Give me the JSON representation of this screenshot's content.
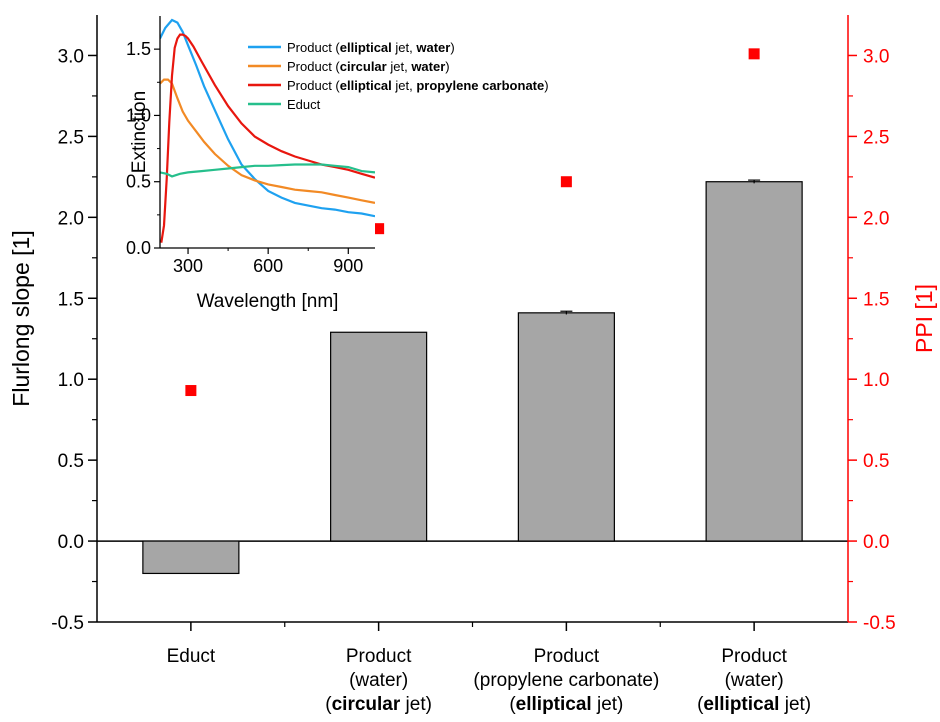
{
  "chart_data": [
    {
      "type": "bar",
      "ylabel": "Flurlong slope [1]",
      "y2label": "PPI [1]",
      "ylim": [
        -0.5,
        3.25
      ],
      "y2lim": [
        -0.5,
        3.25
      ],
      "yticks": [
        "-0.5",
        "0.0",
        "0.5",
        "1.0",
        "1.5",
        "2.0",
        "2.5",
        "3.0"
      ],
      "y2ticks": [
        "-0.5",
        "0.0",
        "0.5",
        "1.0",
        "1.5",
        "2.0",
        "2.5",
        "3.0"
      ],
      "categories": [
        [
          {
            "t": "Educt",
            "b": false
          }
        ],
        [
          {
            "t": "Product",
            "b": false
          }
        ],
        [
          {
            "t": "Product",
            "b": false
          }
        ],
        [
          {
            "t": "Product",
            "b": false
          }
        ]
      ],
      "category_lines": [
        [
          [
            {
              "t": "Educt",
              "b": false
            }
          ]
        ],
        [
          [
            {
              "t": "Product",
              "b": false
            }
          ],
          [
            {
              "t": "(water)",
              "b": false
            }
          ],
          [
            {
              "t": "(",
              "b": false
            },
            {
              "t": "circular",
              "b": true
            },
            {
              "t": " jet)",
              "b": false
            }
          ]
        ],
        [
          [
            {
              "t": "Product",
              "b": false
            }
          ],
          [
            {
              "t": "(propylene carbonate)",
              "b": false
            }
          ],
          [
            {
              "t": "(",
              "b": false
            },
            {
              "t": "elliptical",
              "b": true
            },
            {
              "t": " jet)",
              "b": false
            }
          ]
        ],
        [
          [
            {
              "t": "Product",
              "b": false
            }
          ],
          [
            {
              "t": "(water)",
              "b": false
            }
          ],
          [
            {
              "t": "(",
              "b": false
            },
            {
              "t": "elliptical",
              "b": true
            },
            {
              "t": " jet)",
              "b": false
            }
          ]
        ]
      ],
      "series": [
        {
          "kind": "bar",
          "axis": "left",
          "values": [
            -0.2,
            1.29,
            1.41,
            2.22
          ],
          "errors": [
            0,
            0,
            0.01,
            0.01
          ],
          "color": "#a6a6a6"
        },
        {
          "kind": "scatter",
          "axis": "right",
          "values": [
            0.93,
            1.93,
            2.22,
            3.01
          ],
          "color": "#ff0000"
        }
      ],
      "axis_colors": {
        "left": "#000000",
        "right": "#ff0000"
      }
    },
    {
      "type": "line",
      "inset": true,
      "xlabel": "Wavelength [nm]",
      "ylabel": "Extinction",
      "xlim": [
        195,
        1000
      ],
      "ylim": [
        0,
        1.75
      ],
      "xticks": [
        300,
        600,
        900
      ],
      "yticks": [
        0,
        0.5,
        1.0,
        1.5
      ],
      "ytick_labels": [
        "0.0",
        "0.5",
        "1.0",
        "1.5"
      ],
      "legend_position": "top-right",
      "series": [
        {
          "name": [
            {
              "t": "Product (",
              "b": false
            },
            {
              "t": "elliptical",
              "b": true
            },
            {
              "t": " jet, ",
              "b": false
            },
            {
              "t": "water",
              "b": true
            },
            {
              "t": ")",
              "b": false
            }
          ],
          "color": "#1ea1f0",
          "x": [
            195,
            215,
            240,
            260,
            280,
            300,
            330,
            360,
            400,
            450,
            500,
            550,
            600,
            650,
            700,
            750,
            800,
            850,
            900,
            950,
            1000
          ],
          "y": [
            1.58,
            1.66,
            1.72,
            1.7,
            1.63,
            1.53,
            1.38,
            1.22,
            1.04,
            0.82,
            0.63,
            0.52,
            0.43,
            0.38,
            0.34,
            0.32,
            0.3,
            0.29,
            0.27,
            0.26,
            0.24
          ]
        },
        {
          "name": [
            {
              "t": "Product (",
              "b": false
            },
            {
              "t": "circular",
              "b": true
            },
            {
              "t": " jet, ",
              "b": false
            },
            {
              "t": "water",
              "b": true
            },
            {
              "t": ")",
              "b": false
            }
          ],
          "color": "#f28a25",
          "x": [
            195,
            210,
            225,
            240,
            260,
            280,
            300,
            330,
            360,
            400,
            450,
            500,
            550,
            600,
            650,
            700,
            750,
            800,
            850,
            900,
            950,
            1000
          ],
          "y": [
            1.24,
            1.27,
            1.27,
            1.24,
            1.13,
            1.03,
            0.96,
            0.88,
            0.8,
            0.71,
            0.62,
            0.55,
            0.51,
            0.48,
            0.46,
            0.44,
            0.43,
            0.42,
            0.4,
            0.38,
            0.36,
            0.34
          ]
        },
        {
          "name": [
            {
              "t": "Product (",
              "b": false
            },
            {
              "t": "elliptical",
              "b": true
            },
            {
              "t": " jet, ",
              "b": false
            },
            {
              "t": "propylene carbonate",
              "b": true
            },
            {
              "t": ")",
              "b": false
            }
          ],
          "color": "#e8170f",
          "x": [
            200,
            210,
            220,
            230,
            240,
            250,
            260,
            270,
            280,
            290,
            300,
            320,
            350,
            400,
            450,
            500,
            550,
            600,
            650,
            700,
            750,
            800,
            850,
            900,
            950,
            1000
          ],
          "y": [
            0.04,
            0.17,
            0.52,
            0.95,
            1.3,
            1.51,
            1.58,
            1.61,
            1.61,
            1.6,
            1.58,
            1.52,
            1.41,
            1.23,
            1.07,
            0.94,
            0.84,
            0.78,
            0.73,
            0.69,
            0.66,
            0.63,
            0.61,
            0.59,
            0.56,
            0.53
          ]
        },
        {
          "name": [
            {
              "t": "Educt",
              "b": false
            }
          ],
          "color": "#26bf8c",
          "x": [
            195,
            220,
            240,
            270,
            300,
            350,
            400,
            450,
            500,
            550,
            600,
            650,
            700,
            750,
            800,
            850,
            900,
            950,
            1000
          ],
          "y": [
            0.57,
            0.56,
            0.54,
            0.56,
            0.57,
            0.58,
            0.59,
            0.6,
            0.61,
            0.62,
            0.62,
            0.625,
            0.63,
            0.63,
            0.63,
            0.62,
            0.61,
            0.58,
            0.57
          ]
        }
      ]
    }
  ]
}
